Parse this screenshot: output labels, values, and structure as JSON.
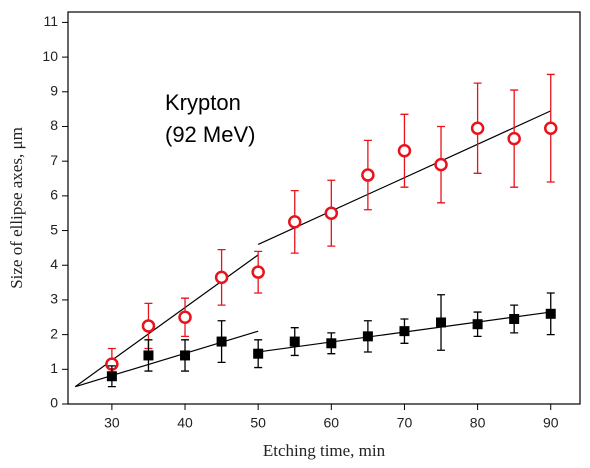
{
  "chart_data": {
    "type": "scatter",
    "x_label": "Etching time, min",
    "y_label": "Size of ellipse axes, μm",
    "annotation": [
      "Krypton",
      "(92 MeV)"
    ],
    "x": [
      30,
      35,
      40,
      45,
      50,
      55,
      60,
      65,
      70,
      75,
      80,
      85,
      90
    ],
    "series": [
      {
        "color": "#e8131b",
        "marker": "open-circle",
        "values": [
          1.15,
          2.25,
          2.5,
          3.65,
          3.8,
          5.25,
          5.5,
          6.6,
          7.3,
          6.9,
          7.95,
          7.65,
          7.95
        ],
        "errors": [
          0.45,
          0.65,
          0.55,
          0.8,
          0.6,
          0.9,
          0.95,
          1.0,
          1.05,
          1.1,
          1.3,
          1.4,
          1.55
        ]
      },
      {
        "color": "#000000",
        "marker": "filled-square",
        "values": [
          0.8,
          1.4,
          1.4,
          1.8,
          1.45,
          1.8,
          1.75,
          1.95,
          2.1,
          2.35,
          2.3,
          2.45,
          2.6
        ],
        "errors": [
          0.3,
          0.45,
          0.45,
          0.6,
          0.4,
          0.4,
          0.3,
          0.45,
          0.35,
          0.8,
          0.35,
          0.4,
          0.6
        ]
      }
    ],
    "fit_lines": [
      {
        "x": [
          25,
          50
        ],
        "y": [
          0.5,
          4.3
        ]
      },
      {
        "x": [
          50,
          90
        ],
        "y": [
          4.6,
          8.45
        ]
      },
      {
        "x": [
          25,
          50
        ],
        "y": [
          0.5,
          2.1
        ]
      },
      {
        "x": [
          50,
          90
        ],
        "y": [
          1.5,
          2.65
        ]
      }
    ],
    "fit_color": "#000000",
    "xlim": [
      24,
      94
    ],
    "ylim": [
      0,
      11.3
    ],
    "xticks": [
      30,
      40,
      50,
      60,
      70,
      80,
      90
    ],
    "yticks": [
      0,
      1,
      2,
      3,
      4,
      5,
      6,
      7,
      8,
      9,
      10,
      11
    ]
  }
}
